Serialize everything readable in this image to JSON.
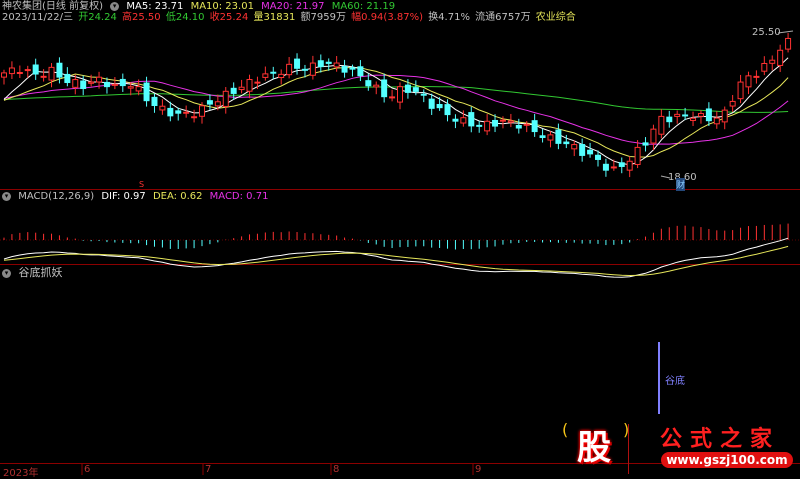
{
  "header": {
    "title": "神农集团(日线 前复权)",
    "ma5": "MA5: 23.71",
    "ma10": "MA10: 23.01",
    "ma20": "MA20: 21.97",
    "ma60": "MA60: 21.19",
    "date": "2023/11/22/三",
    "open": "开24.24",
    "high": "高25.50",
    "low": "低24.10",
    "close": "收25.24",
    "volume": "量31831",
    "amount": "额7959万",
    "change": "幅0.94(3.87%)",
    "turnover": "换4.71%",
    "float": "流通6757万",
    "sector": "农业综合"
  },
  "colors": {
    "up": "#ff3232",
    "down": "#54ffff",
    "ma5": "#ffffff",
    "ma10": "#e6e65a",
    "ma20": "#e632e6",
    "ma60": "#32c832"
  },
  "price_labels": {
    "high": "25.50",
    "low": "18.60",
    "marker_s": "S",
    "marker_cai": "财"
  },
  "macd": {
    "title": "MACD(12,26,9)",
    "dif": "DIF: 0.97",
    "dea": "DEA: 0.62",
    "macd": "MACD: 0.71"
  },
  "indicator": {
    "title": "谷底抓妖",
    "signal": "谷底"
  },
  "x_axis": [
    "2023年",
    "6",
    "7",
    "8",
    "9"
  ],
  "logo": {
    "char": "股",
    "text": "公式之家",
    "url": "www.gszj100.com"
  },
  "chart_data": {
    "type": "candlestick",
    "key_closes": [
      23.6,
      23.8,
      23.5,
      23.7,
      23.2,
      23.0,
      23.3,
      22.9,
      23.1,
      22.3,
      21.8,
      21.6,
      21.7,
      22.2,
      22.6,
      23.0,
      23.4,
      23.6,
      23.9,
      23.8,
      24.1,
      23.9,
      23.6,
      23.0,
      22.4,
      22.9,
      22.6,
      21.9,
      21.5,
      21.2,
      21.1,
      21.3,
      21.2,
      20.9,
      20.5,
      20.3,
      19.9,
      19.5,
      18.9,
      19.4,
      20.2,
      21.4,
      21.5,
      21.6,
      21.4,
      21.6,
      23.1,
      23.6,
      24.2,
      25.4
    ],
    "high": 25.5,
    "low": 18.6
  }
}
